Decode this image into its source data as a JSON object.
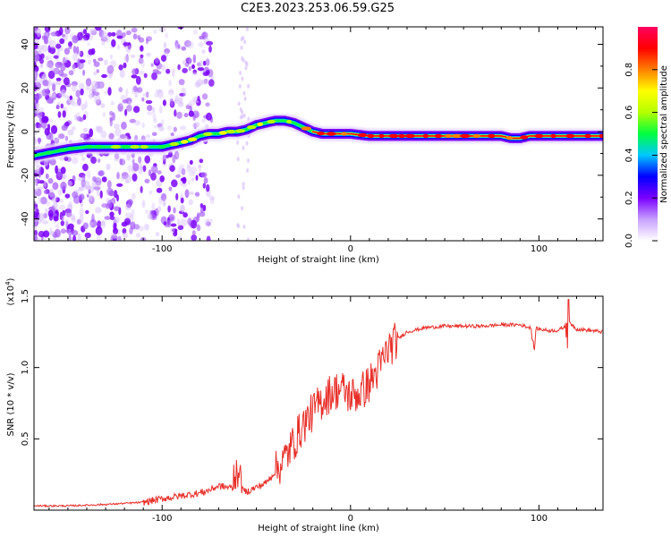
{
  "figure": {
    "title": "C2E3.2023.253.06.59.G25"
  },
  "chart_data": [
    {
      "type": "heatmap",
      "xlabel": "Height of straight line (km)",
      "ylabel": "Frequency (Hz)",
      "xlim": [
        -168,
        134
      ],
      "ylim": [
        -50,
        48
      ],
      "x_ticks": [
        -100,
        0,
        100
      ],
      "x_tick_labels": [
        "-100",
        "0",
        "100"
      ],
      "y_ticks": [
        -40,
        -20,
        0,
        20,
        40
      ],
      "y_tick_labels": [
        "-40",
        "-20",
        "0",
        "20",
        "40"
      ],
      "grid": false,
      "ridge": {
        "x": [
          -168,
          -150,
          -140,
          -130,
          -120,
          -110,
          -100,
          -95,
          -90,
          -85,
          -80,
          -75,
          -70,
          -65,
          -60,
          -55,
          -50,
          -45,
          -40,
          -35,
          -30,
          -25,
          -20,
          -15,
          -10,
          -5,
          0,
          10,
          20,
          40,
          60,
          80,
          85,
          90,
          95,
          100,
          110,
          120,
          134
        ],
        "y": [
          -11,
          -8,
          -7,
          -7,
          -7,
          -7,
          -7,
          -6,
          -5,
          -4,
          -2,
          -1,
          -1,
          0,
          0,
          1,
          3,
          4,
          5,
          5,
          4,
          2,
          0,
          -1,
          -1,
          -1,
          -1,
          -2,
          -2,
          -2,
          -2,
          -2,
          -3,
          -3,
          -2,
          -2,
          -2,
          -2,
          -2
        ]
      },
      "colorbar": {
        "label": "Normalized spectral amplitude",
        "range": [
          0,
          1
        ],
        "ticks": [
          0.0,
          0.2,
          0.4,
          0.6,
          0.8
        ],
        "tick_labels": [
          "0.0",
          "0.2",
          "0.4",
          "0.6",
          "0.8"
        ],
        "colors": [
          "#ffffff",
          "#c8a0ff",
          "#7a00ff",
          "#0000ff",
          "#00c8ff",
          "#00ff40",
          "#b4ff00",
          "#ffff00",
          "#ff8000",
          "#ff0000",
          "#ff0060"
        ]
      }
    },
    {
      "type": "line",
      "xlabel": "Height of straight line (km)",
      "ylabel": "SNR (10 * v/v)",
      "multiplier_label": "(x10",
      "multiplier_exponent": "4",
      "multiplier_close": ")",
      "xlim": [
        -168,
        134
      ],
      "ylim": [
        0,
        15000
      ],
      "x_ticks": [
        -100,
        0,
        100
      ],
      "x_tick_labels": [
        "-100",
        "0",
        "100"
      ],
      "y_ticks": [
        5000,
        10000,
        15000
      ],
      "y_tick_labels": [
        "0.5",
        "1.0",
        "1.5"
      ],
      "grid": false,
      "color": "#e8302a",
      "x": [
        -168,
        -150,
        -130,
        -110,
        -100,
        -90,
        -80,
        -75,
        -70,
        -65,
        -60,
        -55,
        -50,
        -45,
        -40,
        -35,
        -30,
        -25,
        -20,
        -15,
        -10,
        -5,
        0,
        5,
        10,
        15,
        20,
        25,
        30,
        40,
        50,
        60,
        70,
        80,
        90,
        95,
        100,
        105,
        110,
        113,
        116,
        120,
        134
      ],
      "y": [
        300,
        300,
        400,
        550,
        800,
        1000,
        1200,
        1400,
        1700,
        1600,
        1500,
        1300,
        1600,
        1900,
        2700,
        3600,
        4800,
        6000,
        6900,
        7700,
        8300,
        8500,
        8000,
        8200,
        8900,
        9900,
        11300,
        12000,
        12500,
        12800,
        12900,
        12900,
        12900,
        13000,
        13000,
        12800,
        12700,
        12600,
        12600,
        12800,
        13200,
        12700,
        12500
      ]
    }
  ]
}
